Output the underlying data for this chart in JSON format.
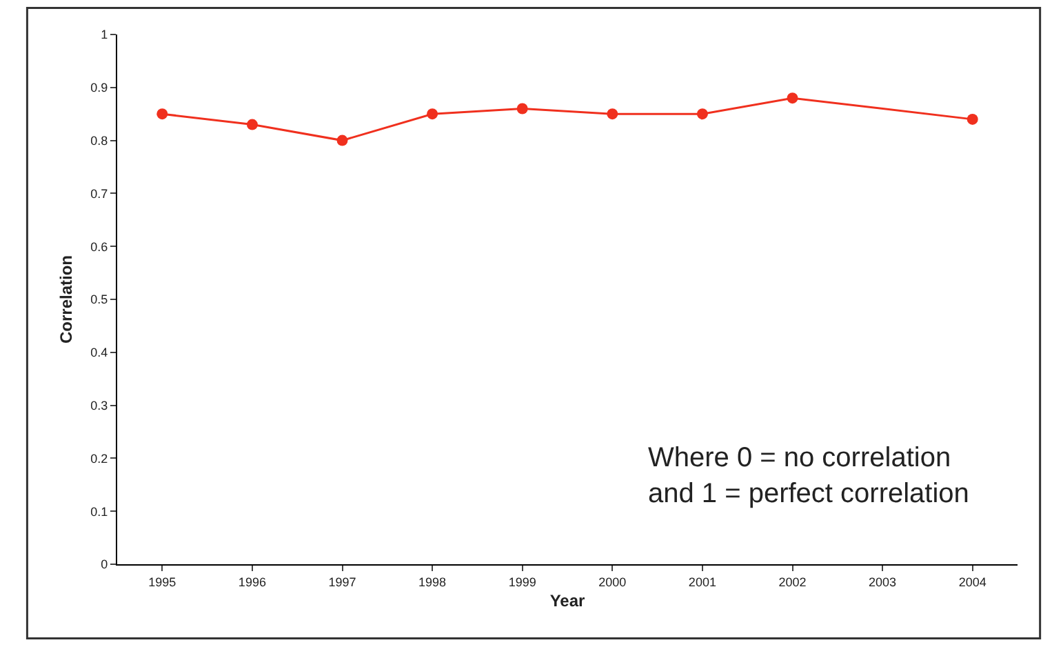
{
  "chart_data": {
    "type": "line",
    "xlabel": "Year",
    "ylabel": "Correlation",
    "categories": [
      "1995",
      "1996",
      "1997",
      "1998",
      "1999",
      "2000",
      "2001",
      "2002",
      "2003",
      "2004"
    ],
    "series": [
      {
        "color": "#f0301e",
        "values": [
          0.85,
          0.83,
          0.8,
          0.85,
          0.86,
          0.85,
          0.85,
          0.88,
          null,
          0.84
        ]
      }
    ],
    "ylim": [
      0,
      1
    ],
    "yticks": [
      0,
      0.1,
      0.2,
      0.3,
      0.4,
      0.5,
      0.6,
      0.7,
      0.8,
      0.9,
      1
    ],
    "annotations": [
      "Where 0 = no correlation\nand 1 = perfect correlation"
    ],
    "legend": false,
    "marker": "circle",
    "line_style": "solid"
  }
}
